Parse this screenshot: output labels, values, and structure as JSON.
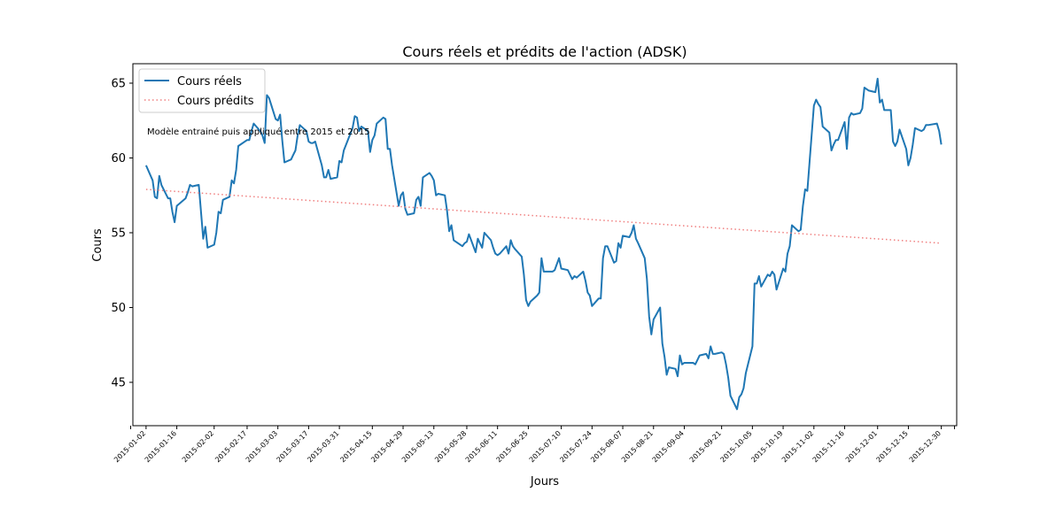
{
  "chart_data": {
    "type": "line",
    "title": "Cours réels et prédits de l'action (ADSK)",
    "xlabel": "Jours",
    "ylabel": "Cours",
    "annotation": "Modèle entrainé puis appliqué entre 2015 et 2015",
    "x_range": [
      "2014-12-27",
      "2016-01-06"
    ],
    "ylim": [
      42.1,
      66.3
    ],
    "yticks": [
      45,
      50,
      55,
      60,
      65
    ],
    "xticks": [
      "2015-01-02",
      "2015-01-16",
      "2015-02-02",
      "2015-02-17",
      "2015-03-03",
      "2015-03-17",
      "2015-03-31",
      "2015-04-15",
      "2015-04-29",
      "2015-05-13",
      "2015-05-28",
      "2015-06-11",
      "2015-06-25",
      "2015-07-10",
      "2015-07-24",
      "2015-08-07",
      "2015-08-21",
      "2015-09-04",
      "2015-09-21",
      "2015-10-05",
      "2015-10-19",
      "2015-11-02",
      "2015-11-16",
      "2015-12-01",
      "2015-12-15",
      "2015-12-30"
    ],
    "grid": false,
    "legend_position": "top-left",
    "series": [
      {
        "name": "Cours réels",
        "color": "#1f77b4",
        "style": "solid",
        "points": [
          [
            "2015-01-02",
            59.5
          ],
          [
            "2015-01-05",
            58.5
          ],
          [
            "2015-01-06",
            57.4
          ],
          [
            "2015-01-07",
            57.3
          ],
          [
            "2015-01-08",
            58.8
          ],
          [
            "2015-01-09",
            58.2
          ],
          [
            "2015-01-12",
            57.3
          ],
          [
            "2015-01-13",
            57.3
          ],
          [
            "2015-01-14",
            56.4
          ],
          [
            "2015-01-15",
            55.7
          ],
          [
            "2015-01-16",
            56.8
          ],
          [
            "2015-01-20",
            57.3
          ],
          [
            "2015-01-21",
            57.7
          ],
          [
            "2015-01-22",
            58.2
          ],
          [
            "2015-01-23",
            58.1
          ],
          [
            "2015-01-26",
            58.2
          ],
          [
            "2015-01-27",
            56.4
          ],
          [
            "2015-01-28",
            54.6
          ],
          [
            "2015-01-29",
            55.4
          ],
          [
            "2015-01-30",
            54.0
          ],
          [
            "2015-02-02",
            54.2
          ],
          [
            "2015-02-03",
            55.0
          ],
          [
            "2015-02-04",
            56.4
          ],
          [
            "2015-02-05",
            56.3
          ],
          [
            "2015-02-06",
            57.2
          ],
          [
            "2015-02-09",
            57.4
          ],
          [
            "2015-02-10",
            58.5
          ],
          [
            "2015-02-11",
            58.3
          ],
          [
            "2015-02-12",
            59.2
          ],
          [
            "2015-02-13",
            60.8
          ],
          [
            "2015-02-17",
            61.2
          ],
          [
            "2015-02-18",
            61.2
          ],
          [
            "2015-02-19",
            61.8
          ],
          [
            "2015-02-20",
            62.3
          ],
          [
            "2015-02-23",
            61.8
          ],
          [
            "2015-02-24",
            61.5
          ],
          [
            "2015-02-25",
            61.0
          ],
          [
            "2015-02-26",
            64.2
          ],
          [
            "2015-02-27",
            64.0
          ],
          [
            "2015-03-02",
            62.6
          ],
          [
            "2015-03-03",
            62.5
          ],
          [
            "2015-03-04",
            62.9
          ],
          [
            "2015-03-05",
            61.2
          ],
          [
            "2015-03-06",
            59.7
          ],
          [
            "2015-03-09",
            59.9
          ],
          [
            "2015-03-10",
            60.2
          ],
          [
            "2015-03-11",
            60.5
          ],
          [
            "2015-03-12",
            61.5
          ],
          [
            "2015-03-13",
            62.2
          ],
          [
            "2015-03-16",
            61.8
          ],
          [
            "2015-03-17",
            61.1
          ],
          [
            "2015-03-18",
            61.0
          ],
          [
            "2015-03-19",
            61.0
          ],
          [
            "2015-03-20",
            61.1
          ],
          [
            "2015-03-23",
            59.5
          ],
          [
            "2015-03-24",
            58.7
          ],
          [
            "2015-03-25",
            58.7
          ],
          [
            "2015-03-26",
            59.2
          ],
          [
            "2015-03-27",
            58.6
          ],
          [
            "2015-03-30",
            58.7
          ],
          [
            "2015-03-31",
            59.8
          ],
          [
            "2015-04-01",
            59.7
          ],
          [
            "2015-04-02",
            60.5
          ],
          [
            "2015-04-06",
            62.0
          ],
          [
            "2015-04-07",
            62.8
          ],
          [
            "2015-04-08",
            62.7
          ],
          [
            "2015-04-09",
            61.8
          ],
          [
            "2015-04-10",
            62.1
          ],
          [
            "2015-04-13",
            61.8
          ],
          [
            "2015-04-14",
            60.4
          ],
          [
            "2015-04-15",
            61.2
          ],
          [
            "2015-04-16",
            61.5
          ],
          [
            "2015-04-17",
            62.3
          ],
          [
            "2015-04-20",
            62.7
          ],
          [
            "2015-04-21",
            62.6
          ],
          [
            "2015-04-22",
            60.6
          ],
          [
            "2015-04-23",
            60.6
          ],
          [
            "2015-04-24",
            59.5
          ],
          [
            "2015-04-27",
            56.8
          ],
          [
            "2015-04-28",
            57.5
          ],
          [
            "2015-04-29",
            57.7
          ],
          [
            "2015-04-30",
            56.6
          ],
          [
            "2015-05-01",
            56.2
          ],
          [
            "2015-05-04",
            56.3
          ],
          [
            "2015-05-05",
            57.2
          ],
          [
            "2015-05-06",
            57.4
          ],
          [
            "2015-05-07",
            56.8
          ],
          [
            "2015-05-08",
            58.7
          ],
          [
            "2015-05-11",
            59.0
          ],
          [
            "2015-05-12",
            58.8
          ],
          [
            "2015-05-13",
            58.5
          ],
          [
            "2015-05-14",
            57.5
          ],
          [
            "2015-05-15",
            57.6
          ],
          [
            "2015-05-18",
            57.5
          ],
          [
            "2015-05-19",
            56.5
          ],
          [
            "2015-05-20",
            55.1
          ],
          [
            "2015-05-21",
            55.5
          ],
          [
            "2015-05-22",
            54.5
          ],
          [
            "2015-05-26",
            54.1
          ],
          [
            "2015-05-27",
            54.3
          ],
          [
            "2015-05-28",
            54.4
          ],
          [
            "2015-05-29",
            54.9
          ],
          [
            "2015-06-01",
            53.7
          ],
          [
            "2015-06-02",
            54.6
          ],
          [
            "2015-06-03",
            54.3
          ],
          [
            "2015-06-04",
            54.0
          ],
          [
            "2015-06-05",
            55.0
          ],
          [
            "2015-06-08",
            54.5
          ],
          [
            "2015-06-09",
            54.0
          ],
          [
            "2015-06-10",
            53.6
          ],
          [
            "2015-06-11",
            53.5
          ],
          [
            "2015-06-12",
            53.6
          ],
          [
            "2015-06-15",
            54.1
          ],
          [
            "2015-06-16",
            53.6
          ],
          [
            "2015-06-17",
            54.5
          ],
          [
            "2015-06-18",
            54.1
          ],
          [
            "2015-06-19",
            53.9
          ],
          [
            "2015-06-22",
            53.4
          ],
          [
            "2015-06-23",
            52.2
          ],
          [
            "2015-06-24",
            50.5
          ],
          [
            "2015-06-25",
            50.1
          ],
          [
            "2015-06-26",
            50.4
          ],
          [
            "2015-06-29",
            50.8
          ],
          [
            "2015-06-30",
            51.0
          ],
          [
            "2015-07-01",
            53.3
          ],
          [
            "2015-07-02",
            52.4
          ],
          [
            "2015-07-06",
            52.4
          ],
          [
            "2015-07-07",
            52.5
          ],
          [
            "2015-07-08",
            52.9
          ],
          [
            "2015-07-09",
            53.3
          ],
          [
            "2015-07-10",
            52.6
          ],
          [
            "2015-07-13",
            52.5
          ],
          [
            "2015-07-14",
            52.2
          ],
          [
            "2015-07-15",
            51.9
          ],
          [
            "2015-07-16",
            52.1
          ],
          [
            "2015-07-17",
            52.0
          ],
          [
            "2015-07-20",
            52.4
          ],
          [
            "2015-07-21",
            51.8
          ],
          [
            "2015-07-22",
            51.0
          ],
          [
            "2015-07-23",
            50.8
          ],
          [
            "2015-07-24",
            50.1
          ],
          [
            "2015-07-27",
            50.6
          ],
          [
            "2015-07-28",
            50.6
          ],
          [
            "2015-07-29",
            53.3
          ],
          [
            "2015-07-30",
            54.1
          ],
          [
            "2015-07-31",
            54.1
          ],
          [
            "2015-08-03",
            53.0
          ],
          [
            "2015-08-04",
            53.1
          ],
          [
            "2015-08-05",
            54.3
          ],
          [
            "2015-08-06",
            54.0
          ],
          [
            "2015-08-07",
            54.8
          ],
          [
            "2015-08-10",
            54.7
          ],
          [
            "2015-08-11",
            55.0
          ],
          [
            "2015-08-12",
            55.5
          ],
          [
            "2015-08-13",
            54.6
          ],
          [
            "2015-08-14",
            54.3
          ],
          [
            "2015-08-17",
            53.3
          ],
          [
            "2015-08-18",
            51.9
          ],
          [
            "2015-08-19",
            49.4
          ],
          [
            "2015-08-20",
            48.2
          ],
          [
            "2015-08-21",
            49.2
          ],
          [
            "2015-08-24",
            50.0
          ],
          [
            "2015-08-25",
            47.6
          ],
          [
            "2015-08-26",
            46.7
          ],
          [
            "2015-08-27",
            45.5
          ],
          [
            "2015-08-28",
            46.0
          ],
          [
            "2015-08-31",
            45.9
          ],
          [
            "2015-09-01",
            45.4
          ],
          [
            "2015-09-02",
            46.8
          ],
          [
            "2015-09-03",
            46.2
          ],
          [
            "2015-09-04",
            46.3
          ],
          [
            "2015-09-08",
            46.3
          ],
          [
            "2015-09-09",
            46.2
          ],
          [
            "2015-09-10",
            46.5
          ],
          [
            "2015-09-11",
            46.8
          ],
          [
            "2015-09-14",
            46.9
          ],
          [
            "2015-09-15",
            46.6
          ],
          [
            "2015-09-16",
            47.4
          ],
          [
            "2015-09-17",
            46.9
          ],
          [
            "2015-09-18",
            46.9
          ],
          [
            "2015-09-21",
            47.0
          ],
          [
            "2015-09-22",
            46.9
          ],
          [
            "2015-09-23",
            46.2
          ],
          [
            "2015-09-24",
            45.3
          ],
          [
            "2015-09-25",
            44.1
          ],
          [
            "2015-09-28",
            43.2
          ],
          [
            "2015-09-29",
            44.0
          ],
          [
            "2015-09-30",
            44.2
          ],
          [
            "2015-10-01",
            44.6
          ],
          [
            "2015-10-02",
            45.6
          ],
          [
            "2015-10-05",
            47.4
          ],
          [
            "2015-10-06",
            51.6
          ],
          [
            "2015-10-07",
            51.6
          ],
          [
            "2015-10-08",
            52.1
          ],
          [
            "2015-10-09",
            51.4
          ],
          [
            "2015-10-12",
            52.2
          ],
          [
            "2015-10-13",
            52.1
          ],
          [
            "2015-10-14",
            52.4
          ],
          [
            "2015-10-15",
            52.2
          ],
          [
            "2015-10-16",
            51.2
          ],
          [
            "2015-10-19",
            52.6
          ],
          [
            "2015-10-20",
            52.4
          ],
          [
            "2015-10-21",
            53.6
          ],
          [
            "2015-10-22",
            54.1
          ],
          [
            "2015-10-23",
            55.5
          ],
          [
            "2015-10-26",
            55.1
          ],
          [
            "2015-10-27",
            55.2
          ],
          [
            "2015-10-28",
            56.8
          ],
          [
            "2015-10-29",
            57.9
          ],
          [
            "2015-10-30",
            57.8
          ],
          [
            "2015-11-02",
            63.5
          ],
          [
            "2015-11-03",
            63.9
          ],
          [
            "2015-11-04",
            63.6
          ],
          [
            "2015-11-05",
            63.4
          ],
          [
            "2015-11-06",
            62.1
          ],
          [
            "2015-11-09",
            61.7
          ],
          [
            "2015-11-10",
            60.5
          ],
          [
            "2015-11-11",
            60.9
          ],
          [
            "2015-11-12",
            61.2
          ],
          [
            "2015-11-13",
            61.2
          ],
          [
            "2015-11-16",
            62.4
          ],
          [
            "2015-11-17",
            60.6
          ],
          [
            "2015-11-18",
            62.7
          ],
          [
            "2015-11-19",
            63.0
          ],
          [
            "2015-11-20",
            62.9
          ],
          [
            "2015-11-23",
            63.0
          ],
          [
            "2015-11-24",
            63.3
          ],
          [
            "2015-11-25",
            64.7
          ],
          [
            "2015-11-27",
            64.5
          ],
          [
            "2015-11-30",
            64.4
          ],
          [
            "2015-12-01",
            65.3
          ],
          [
            "2015-12-02",
            63.7
          ],
          [
            "2015-12-03",
            63.9
          ],
          [
            "2015-12-04",
            63.2
          ],
          [
            "2015-12-07",
            63.2
          ],
          [
            "2015-12-08",
            61.1
          ],
          [
            "2015-12-09",
            60.8
          ],
          [
            "2015-12-10",
            61.1
          ],
          [
            "2015-12-11",
            61.9
          ],
          [
            "2015-12-14",
            60.6
          ],
          [
            "2015-12-15",
            59.5
          ],
          [
            "2015-12-16",
            60.0
          ],
          [
            "2015-12-17",
            60.9
          ],
          [
            "2015-12-18",
            62.0
          ],
          [
            "2015-12-21",
            61.8
          ],
          [
            "2015-12-22",
            61.9
          ],
          [
            "2015-12-23",
            62.2
          ],
          [
            "2015-12-24",
            62.2
          ],
          [
            "2015-12-28",
            62.3
          ],
          [
            "2015-12-29",
            61.8
          ],
          [
            "2015-12-30",
            60.9
          ]
        ]
      },
      {
        "name": "Cours prédits",
        "color": "#f08080",
        "style": "dotted",
        "points": [
          [
            "2015-01-02",
            57.9
          ],
          [
            "2015-12-30",
            54.3
          ]
        ]
      }
    ]
  }
}
